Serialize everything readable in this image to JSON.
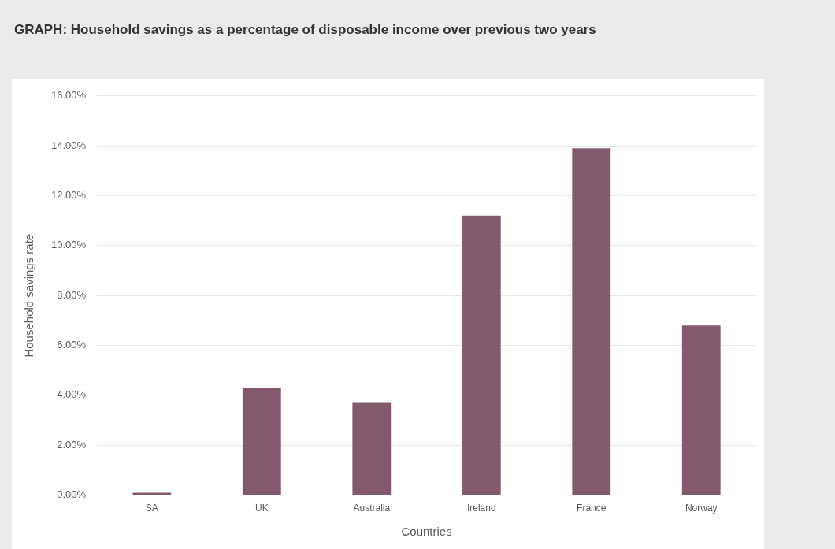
{
  "chart_data": {
    "type": "bar",
    "title": "GRAPH: Household savings as a percentage of disposable income over previous two years",
    "xlabel": "Countries",
    "ylabel": "Household savings rate",
    "categories": [
      "SA",
      "UK",
      "Australia",
      "Ireland",
      "France",
      "Norway"
    ],
    "values": [
      0.1,
      4.3,
      3.7,
      11.2,
      13.9,
      6.8
    ],
    "color": "#84596e",
    "ylim": [
      0,
      16
    ],
    "yticks": [
      {
        "value": 0,
        "label": "0.00%"
      },
      {
        "value": 2,
        "label": "2.00%"
      },
      {
        "value": 4,
        "label": "4.00%"
      },
      {
        "value": 6,
        "label": "6.00%"
      },
      {
        "value": 8,
        "label": "8.00%"
      },
      {
        "value": 10,
        "label": "10.00%"
      },
      {
        "value": 12,
        "label": "12.00%"
      },
      {
        "value": 14,
        "label": "14.00%"
      },
      {
        "value": 16,
        "label": "16.00%"
      }
    ],
    "grid": "y",
    "legend": false
  }
}
